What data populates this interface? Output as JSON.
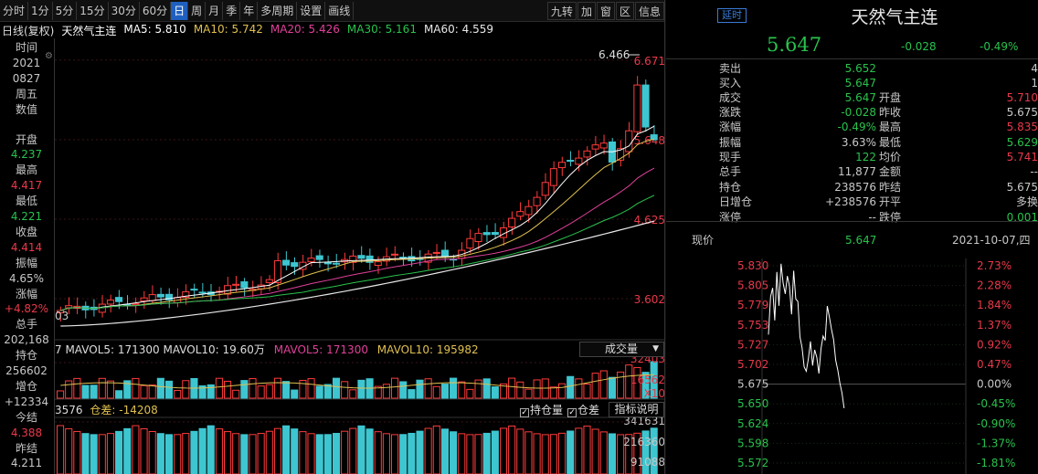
{
  "toolbar": {
    "periods": [
      "分时",
      "1分",
      "5分",
      "15分",
      "30分",
      "60分",
      "日",
      "周",
      "月",
      "季",
      "年",
      "多周期",
      "设置",
      "画线"
    ],
    "active": "日",
    "right": [
      "九转",
      "加",
      "窗",
      "区",
      "信息"
    ]
  },
  "series": {
    "period_label": "日线(复权)",
    "name": "天然气主连",
    "ma5": "MA5: 5.810",
    "ma10": "MA10: 5.742",
    "ma20": "MA20: 5.426",
    "ma30": "MA30: 5.161",
    "ma60": "MA60: 4.559"
  },
  "sidebar": {
    "time_label": "时间",
    "year": "2021",
    "date": "0827",
    "weekday": "周五",
    "value_label": "数值",
    "open_label": "开盘",
    "open": "4.237",
    "high_label": "最高",
    "high": "4.417",
    "low_label": "最低",
    "low": "4.221",
    "close_label": "收盘",
    "close": "4.414",
    "amp_label": "振幅",
    "amp": "4.65%",
    "chg_label": "涨幅",
    "chg": "+4.82%",
    "vol_label": "总手",
    "vol": "202,168",
    "oi_label": "持仓",
    "oi": "256602",
    "inc_label": "增仓",
    "inc": "+12334",
    "settle_label": "今结",
    "settle": "4.388",
    "prev_label": "昨结",
    "prev": "4.211"
  },
  "kline": {
    "y_ticks": [
      "6.671",
      "5.648",
      "4.625",
      "3.602"
    ],
    "max_label": "6.466",
    "low_edge_label": "03"
  },
  "volume": {
    "header": "7  MAVOL5: 171300  MAVOL10: 19.60万",
    "mavol5": "MAVOL5: 171300",
    "mavol10": "MAVOL10: 195982",
    "selector": "成交量",
    "y_ticks": [
      "32403",
      "16562"
    ],
    "unit": "X10"
  },
  "oi_panel": {
    "header": "3576",
    "diff": "仓差: -14208",
    "cb1": "持仓量",
    "cb2": "仓差",
    "btn": "指标说明",
    "y_ticks": [
      "341631",
      "216360",
      "91088"
    ]
  },
  "quote": {
    "tag": "延时",
    "title": "天然气主连",
    "price": "5.647",
    "change": "-0.028",
    "pct": "-0.49%",
    "sell_label": "卖出",
    "sell": "5.652",
    "sell_vol": "4",
    "buy_label": "买入",
    "buy": "5.647",
    "buy_vol": "1",
    "rows": [
      {
        "l1": "成交",
        "v1": "5.647",
        "l2": "开盘",
        "v2": "5.710"
      },
      {
        "l1": "涨跌",
        "v1": "-0.028",
        "l2": "昨收",
        "v2": "5.675"
      },
      {
        "l1": "涨幅",
        "v1": "-0.49%",
        "l2": "最高",
        "v2": "5.835"
      },
      {
        "l1": "振幅",
        "v1": "3.63%",
        "l2": "最低",
        "v2": "5.629"
      },
      {
        "l1": "现手",
        "v1": "122",
        "l2": "均价",
        "v2": "5.741"
      },
      {
        "l1": "总手",
        "v1": "11,877",
        "l2": "金额",
        "v2": "--"
      },
      {
        "l1": "持仓",
        "v1": "238576",
        "l2": "昨结",
        "v2": "5.675"
      },
      {
        "l1": "日增仓",
        "v1": "+238576",
        "l2": "开平",
        "v2": "多换"
      },
      {
        "l1": "涨停",
        "v1": "--",
        "l2": "跌停",
        "v2": "0.001"
      }
    ]
  },
  "mini": {
    "label": "现价",
    "price": "5.647",
    "date": "2021-10-07,四",
    "y_left": [
      "5.830",
      "5.805",
      "5.779",
      "5.753",
      "5.727",
      "5.702",
      "5.675",
      "5.650",
      "5.624",
      "5.598",
      "5.572"
    ],
    "y_right": [
      "2.73%",
      "2.28%",
      "1.84%",
      "1.37%",
      "0.92%",
      "0.47%",
      "0.00%",
      "-0.45%",
      "-0.90%",
      "-1.37%",
      "-1.81%"
    ]
  }
}
